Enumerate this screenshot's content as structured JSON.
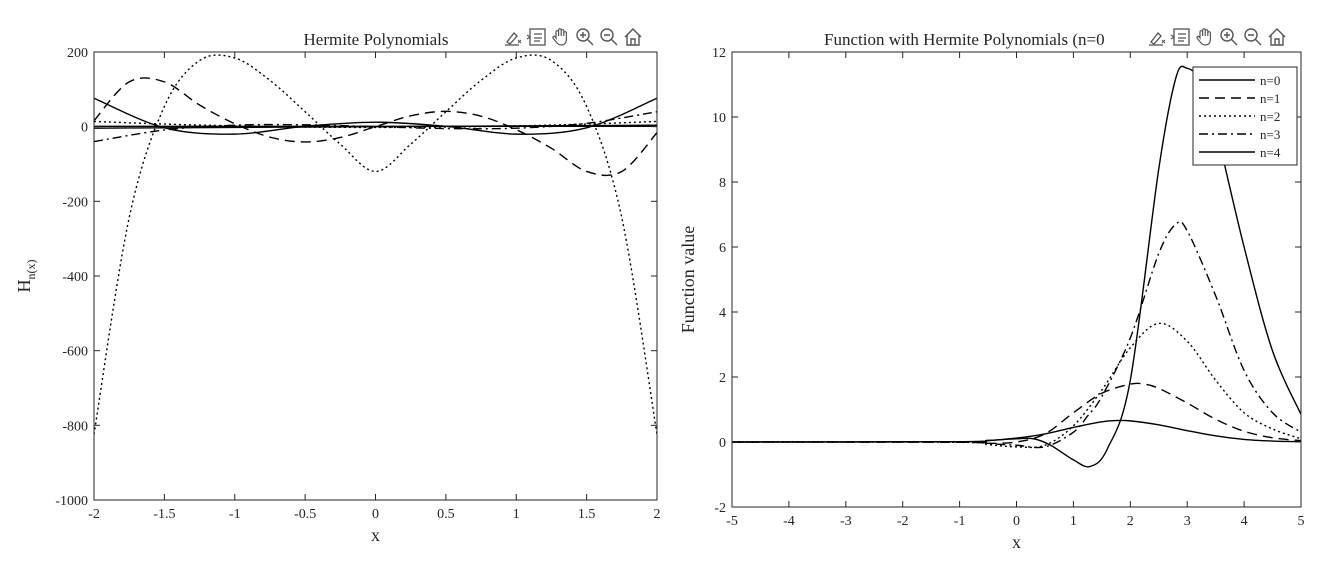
{
  "toolbar_icons": [
    "brush-icon",
    "data-tips-icon",
    "pan-hand-icon",
    "zoom-in-icon",
    "zoom-out-icon",
    "home-icon"
  ],
  "chart_data": [
    {
      "type": "line",
      "title": "Hermite Polynomials",
      "xlabel": "x",
      "ylabel_main": "H",
      "ylabel_sub": "n(x)",
      "xlim": [
        -2,
        2
      ],
      "ylim": [
        -1000,
        200
      ],
      "xticks": [
        -2,
        -1.5,
        -1,
        -0.5,
        0,
        0.5,
        1,
        1.5,
        2
      ],
      "xtick_labels": [
        "-2",
        "-1.5",
        "-1",
        "-0.5",
        "0",
        "0.5",
        "1",
        "1.5",
        "2"
      ],
      "yticks": [
        -1000,
        -800,
        -600,
        -400,
        -200,
        0,
        200
      ],
      "ytick_labels": [
        "-1000",
        "-800",
        "-600",
        "-400",
        "-200",
        "0",
        "200"
      ],
      "grid": false,
      "color": "#000000",
      "series": [
        {
          "hermite_n": 0,
          "dash": "solid",
          "x": [
            -2,
            -1.5,
            -1,
            -0.5,
            0,
            0.5,
            1,
            1.5,
            2
          ],
          "values": [
            1,
            1,
            1,
            1,
            1,
            1,
            1,
            1,
            1
          ]
        },
        {
          "hermite_n": 1,
          "dash": "solid",
          "x": [
            -2,
            -1.5,
            -1,
            -0.5,
            0,
            0.5,
            1,
            1.5,
            2
          ],
          "values": [
            -4,
            -3,
            -2,
            -1,
            0,
            1,
            2,
            3,
            4
          ]
        },
        {
          "hermite_n": 2,
          "dash": "dotted",
          "x": [
            -2,
            -1.5,
            -1,
            -0.5,
            0,
            0.5,
            1,
            1.5,
            2
          ],
          "values": [
            14,
            7,
            2,
            -1,
            -2,
            -1,
            2,
            7,
            14
          ]
        },
        {
          "hermite_n": 3,
          "dash": "dashdot",
          "x": [
            -2,
            -1.5,
            -1,
            -0.5,
            0,
            0.5,
            1,
            1.5,
            2
          ],
          "values": [
            -40,
            -9,
            4,
            5,
            0,
            -5,
            -4,
            9,
            40
          ]
        },
        {
          "hermite_n": 4,
          "dash": "solid",
          "x": [
            -2,
            -1.5,
            -1,
            -0.5,
            0,
            0.5,
            1,
            1.5,
            2
          ],
          "values": [
            76,
            -3,
            -20,
            1,
            12,
            1,
            -20,
            -3,
            76
          ]
        },
        {
          "hermite_n": 5,
          "dash": "dashed",
          "x": [
            -2,
            -1.75,
            -1.5,
            -1.25,
            -1,
            -0.75,
            -0.5,
            -0.25,
            0,
            0.25,
            0.5,
            0.75,
            1,
            1.25,
            1.5,
            1.75,
            2
          ],
          "values": [
            16,
            120,
            120,
            58,
            8,
            -28,
            -41,
            -29,
            0,
            29,
            41,
            28,
            -8,
            -58,
            -120,
            -120,
            -16
          ]
        },
        {
          "hermite_n": 6,
          "dash": "dotted",
          "x": [
            -2,
            -1.75,
            -1.5,
            -1.25,
            -1,
            -0.75,
            -0.5,
            -0.25,
            0,
            0.25,
            0.5,
            0.75,
            1,
            1.25,
            1.5,
            1.75,
            2
          ],
          "values": [
            -824,
            -244,
            54,
            177,
            184,
            124,
            40,
            -47,
            -120,
            -47,
            40,
            124,
            184,
            177,
            54,
            -244,
            -824
          ]
        }
      ]
    },
    {
      "type": "line",
      "title": "Function with Hermite Polynomials (n=0",
      "xlabel": "x",
      "ylabel": "Function value",
      "xlim": [
        -5,
        5
      ],
      "ylim": [
        -2,
        12
      ],
      "xticks": [
        -5,
        -4,
        -3,
        -2,
        -1,
        0,
        1,
        2,
        3,
        4,
        5
      ],
      "xtick_labels": [
        "-5",
        "-4",
        "-3",
        "-2",
        "-1",
        "0",
        "1",
        "2",
        "3",
        "4",
        "5"
      ],
      "yticks": [
        -2,
        0,
        2,
        4,
        6,
        8,
        10,
        12
      ],
      "ytick_labels": [
        "-2",
        "0",
        "2",
        "4",
        "6",
        "8",
        "10",
        "12"
      ],
      "grid": false,
      "legend_position": "top-right",
      "color": "#000000",
      "series": [
        {
          "name": "n=0",
          "dash": "solid",
          "x": [
            -5,
            -1,
            -0.5,
            0,
            0.5,
            1,
            1.5,
            1.75,
            2,
            2.5,
            3,
            3.5,
            4,
            4.5,
            5
          ],
          "values": [
            0,
            0.01,
            0.04,
            0.12,
            0.25,
            0.45,
            0.62,
            0.66,
            0.65,
            0.53,
            0.35,
            0.19,
            0.08,
            0.03,
            0.01
          ]
        },
        {
          "name": "n=1",
          "dash": "dashed",
          "x": [
            -5,
            -1,
            -0.5,
            0,
            0.5,
            1,
            1.5,
            2,
            2.25,
            2.5,
            3,
            3.5,
            4,
            4.5,
            5
          ],
          "values": [
            0,
            -0.01,
            -0.04,
            0,
            0.25,
            0.9,
            1.5,
            1.78,
            1.78,
            1.65,
            1.2,
            0.7,
            0.33,
            0.13,
            0.04
          ]
        },
        {
          "name": "n=2",
          "dash": "dotted",
          "x": [
            -5,
            -1,
            -0.5,
            0,
            0.5,
            1,
            1.5,
            2,
            2.5,
            3,
            3.5,
            4,
            4.5,
            5
          ],
          "values": [
            0,
            -0.01,
            -0.08,
            -0.15,
            -0.1,
            0.5,
            1.6,
            2.9,
            3.65,
            3.1,
            1.9,
            0.9,
            0.4,
            0.1
          ]
        },
        {
          "name": "n=3",
          "dash": "dashdot",
          "x": [
            -5,
            -1,
            -0.5,
            0,
            0.5,
            1,
            1.25,
            1.5,
            2,
            2.5,
            2.8,
            3,
            3.5,
            4,
            4.5,
            5
          ],
          "values": [
            0,
            0,
            -0.05,
            -0.1,
            -0.15,
            0.3,
            0.8,
            1.4,
            3.2,
            5.8,
            6.7,
            6.5,
            4.5,
            2.2,
            0.9,
            0.3
          ]
        },
        {
          "name": "n=4",
          "dash": "solid",
          "x": [
            -5,
            -1,
            -0.5,
            0,
            0.3,
            0.6,
            1,
            1.3,
            1.6,
            2,
            2.5,
            2.8,
            3,
            3.3,
            3.5,
            4,
            4.5,
            5
          ],
          "values": [
            0,
            0.01,
            0.05,
            0.1,
            0.1,
            -0.1,
            -0.55,
            -0.75,
            -0.2,
            1.9,
            8.4,
            11.2,
            11.5,
            11,
            9.7,
            6,
            2.8,
            0.85
          ]
        }
      ]
    }
  ]
}
